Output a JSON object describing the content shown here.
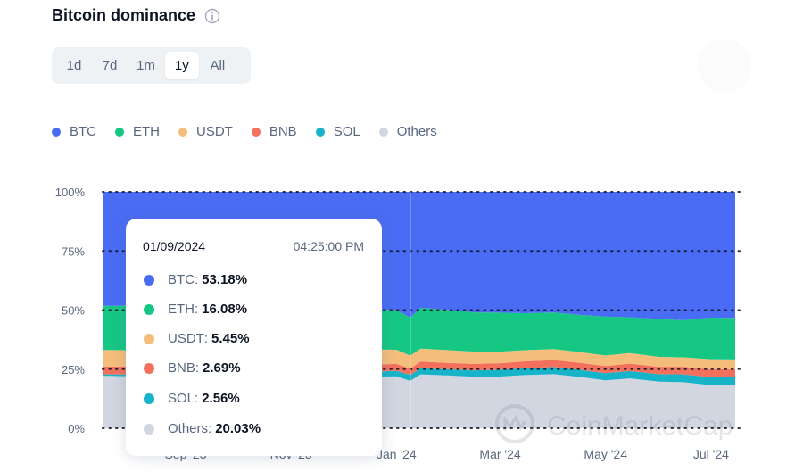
{
  "header": {
    "title": "Bitcoin dominance"
  },
  "range_tabs": [
    "1d",
    "7d",
    "1m",
    "1y",
    "All"
  ],
  "active_tab": "1y",
  "colors": {
    "BTC": "#4a6cf4",
    "ETH": "#16c784",
    "USDT": "#f5bd7c",
    "BNB": "#f2705c",
    "SOL": "#17b3c9",
    "Others": "#d1d6e0"
  },
  "tooltip": {
    "date": "01/09/2024",
    "time": "04:25:00 PM",
    "rows": [
      {
        "name": "BTC",
        "value": "53.18%"
      },
      {
        "name": "ETH",
        "value": "16.08%"
      },
      {
        "name": "USDT",
        "value": "5.45%"
      },
      {
        "name": "BNB",
        "value": "2.69%"
      },
      {
        "name": "SOL",
        "value": "2.56%"
      },
      {
        "name": "Others",
        "value": "20.03%"
      }
    ]
  },
  "watermark": "CoinMarketCap",
  "chart_data": {
    "type": "area",
    "stacked": true,
    "x": [
      "2023-07-15",
      "2023-08-01",
      "2023-08-15",
      "2023-09-01",
      "2023-09-15",
      "2023-10-01",
      "2023-10-15",
      "2023-11-01",
      "2023-11-15",
      "2023-12-01",
      "2023-12-15",
      "2024-01-01",
      "2024-01-09",
      "2024-01-15",
      "2024-02-01",
      "2024-02-15",
      "2024-03-01",
      "2024-03-15",
      "2024-04-01",
      "2024-04-15",
      "2024-05-01",
      "2024-05-15",
      "2024-06-01",
      "2024-06-15",
      "2024-07-01",
      "2024-07-15"
    ],
    "series": [
      {
        "name": "BTC",
        "values": [
          48.2,
          48.2,
          48.6,
          48.5,
          48.6,
          49.0,
          49.3,
          49.3,
          49.2,
          49.4,
          49.6,
          50.0,
          53.18,
          49.0,
          50.0,
          51.0,
          51.1,
          51.3,
          51.0,
          52.0,
          52.8,
          53.0,
          53.8,
          54.3,
          53.2,
          53.3
        ]
      },
      {
        "name": "ETH",
        "values": [
          18.7,
          18.8,
          18.3,
          18.4,
          18.2,
          18.0,
          17.6,
          17.4,
          17.3,
          17.1,
          17.0,
          16.8,
          16.08,
          17.3,
          17.0,
          16.6,
          16.5,
          15.7,
          15.5,
          15.7,
          16.4,
          15.2,
          16.0,
          15.7,
          17.6,
          17.6
        ]
      },
      {
        "name": "USDT",
        "values": [
          7.0,
          7.0,
          7.1,
          7.2,
          7.3,
          7.3,
          7.2,
          7.0,
          6.9,
          6.7,
          6.6,
          6.0,
          5.45,
          5.5,
          5.4,
          5.2,
          4.9,
          4.7,
          4.7,
          4.5,
          4.5,
          4.5,
          4.2,
          4.0,
          4.3,
          4.2
        ]
      },
      {
        "name": "BNB",
        "values": [
          3.3,
          3.3,
          3.3,
          3.2,
          3.2,
          3.2,
          3.2,
          3.1,
          3.1,
          3.0,
          3.0,
          2.9,
          2.69,
          2.8,
          2.7,
          2.7,
          2.8,
          2.9,
          2.9,
          3.0,
          3.0,
          3.1,
          3.1,
          3.2,
          3.3,
          3.2
        ]
      },
      {
        "name": "SOL",
        "values": [
          0.6,
          0.7,
          0.7,
          0.8,
          0.9,
          1.0,
          1.2,
          1.4,
          1.6,
          1.8,
          2.0,
          2.3,
          2.56,
          2.6,
          2.6,
          2.7,
          2.8,
          2.9,
          3.0,
          3.0,
          3.0,
          3.1,
          3.2,
          3.3,
          3.4,
          3.5
        ]
      },
      {
        "name": "Others",
        "values": [
          22.2,
          22.0,
          22.0,
          21.9,
          21.8,
          21.5,
          21.5,
          21.8,
          21.9,
          22.0,
          21.8,
          22.0,
          20.03,
          22.8,
          22.3,
          21.8,
          21.9,
          22.5,
          22.9,
          21.8,
          20.3,
          21.1,
          19.7,
          19.5,
          18.2,
          18.2
        ]
      }
    ],
    "x_tick_labels": [
      "Sep '23",
      "Nov '23",
      "Jan '24",
      "Mar '24",
      "May '24",
      "Jul '24"
    ],
    "y_tick_labels": [
      "100%",
      "75%",
      "50%",
      "25%",
      "0%"
    ],
    "ylim": [
      0,
      100
    ],
    "hover_x": "2024-01-09",
    "grid": true,
    "legend_position": "top-left"
  }
}
